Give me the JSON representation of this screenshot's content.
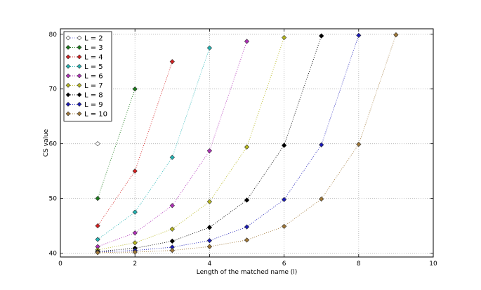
{
  "chart_data": {
    "type": "line",
    "title": "",
    "xlabel": "Length of the matched name (l)",
    "ylabel": "CS value",
    "xlim": [
      0,
      10
    ],
    "ylim": [
      39.3,
      81
    ],
    "x_ticks": [
      0,
      2,
      4,
      6,
      8,
      10
    ],
    "y_ticks": [
      40,
      50,
      60,
      70,
      80
    ],
    "grid": true,
    "line_style": "dotted",
    "marker": "diamond",
    "legend_position": "top-left",
    "series": [
      {
        "name": "L = 2",
        "color": "#8b8bf0",
        "marker_fill": "#ffffff",
        "x": [
          1
        ],
        "y": [
          60
        ]
      },
      {
        "name": "L = 3",
        "color": "#1a7a1a",
        "marker_fill": "#1a7a1a",
        "x": [
          1,
          2
        ],
        "y": [
          50,
          70
        ]
      },
      {
        "name": "L = 4",
        "color": "#d42020",
        "marker_fill": "#d42020",
        "x": [
          1,
          2,
          3
        ],
        "y": [
          45,
          55,
          75
        ]
      },
      {
        "name": "L = 5",
        "color": "#22b4b4",
        "marker_fill": "#22b4b4",
        "x": [
          1,
          2,
          3,
          4
        ],
        "y": [
          42.5,
          47.5,
          57.5,
          77.5
        ]
      },
      {
        "name": "L = 6",
        "color": "#b030b8",
        "marker_fill": "#b030b8",
        "x": [
          1,
          2,
          3,
          4,
          5
        ],
        "y": [
          41.2,
          43.7,
          48.7,
          58.7,
          78.7
        ]
      },
      {
        "name": "L = 7",
        "color": "#b8b820",
        "marker_fill": "#b8b820",
        "x": [
          1,
          2,
          3,
          4,
          5,
          6
        ],
        "y": [
          40.6,
          41.9,
          44.4,
          49.4,
          59.4,
          79.4
        ]
      },
      {
        "name": "L = 8",
        "color": "#000000",
        "marker_fill": "#000000",
        "x": [
          1,
          2,
          3,
          4,
          5,
          6,
          7
        ],
        "y": [
          40.3,
          40.9,
          42.2,
          44.7,
          49.7,
          59.7,
          79.7
        ]
      },
      {
        "name": "L = 9",
        "color": "#1a1ab8",
        "marker_fill": "#1a1ab8",
        "x": [
          1,
          2,
          3,
          4,
          5,
          6,
          7,
          8
        ],
        "y": [
          40.2,
          40.5,
          41.1,
          42.3,
          44.8,
          49.8,
          59.8,
          79.8
        ]
      },
      {
        "name": "L = 10",
        "color": "#a07838",
        "marker_fill": "#a07838",
        "x": [
          1,
          2,
          3,
          4,
          5,
          6,
          7,
          8,
          9
        ],
        "y": [
          40.1,
          40.2,
          40.5,
          41.2,
          42.4,
          44.9,
          49.9,
          59.9,
          79.9
        ]
      }
    ]
  }
}
